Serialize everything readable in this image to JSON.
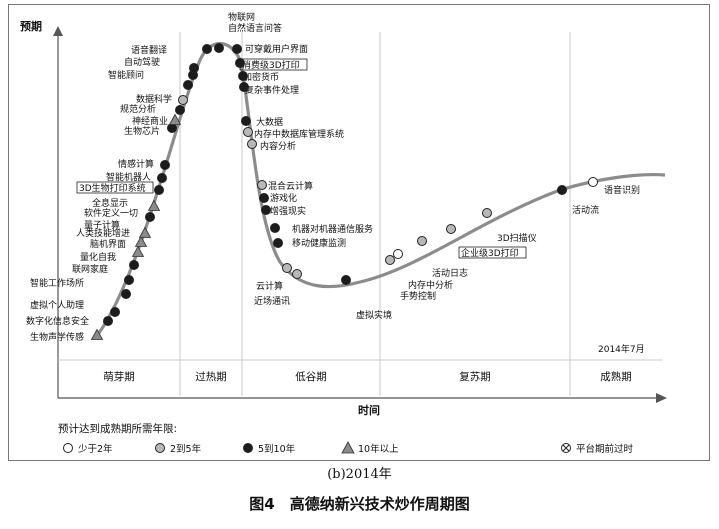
{
  "figure": {
    "y_axis_label": "预期",
    "x_axis_label": "时间",
    "date_note": "2014年7月",
    "phases": [
      "萌芽期",
      "过热期",
      "低谷期",
      "复苏期",
      "成熟期"
    ],
    "legend_title": "预计达到成熟期所需年限:",
    "legend": [
      {
        "key": "lt2",
        "label": "少于2年",
        "fill": "#ffffff"
      },
      {
        "key": "2to5",
        "label": "2到5年",
        "fill": "#b8b8b8"
      },
      {
        "key": "5to10",
        "label": "5到10年",
        "fill": "#1c1c1c"
      },
      {
        "key": "gt10",
        "label": "10年以上",
        "fill": "#8a8a8a"
      },
      {
        "key": "obsolete",
        "label": "平台期前过时",
        "fill": "#ffffff"
      }
    ],
    "technologies": [
      {
        "name": "生物声学传感",
        "stage": "gt10",
        "boxed": false
      },
      {
        "name": "数字化信息安全",
        "stage": "5to10",
        "boxed": false
      },
      {
        "name": "虚拟个人助理",
        "stage": "5to10",
        "boxed": false
      },
      {
        "name": "智能工作场所",
        "stage": "5to10",
        "boxed": false
      },
      {
        "name": "联网家庭",
        "stage": "5to10",
        "boxed": false
      },
      {
        "name": "量化自我",
        "stage": "5to10",
        "boxed": false
      },
      {
        "name": "脑机界面",
        "stage": "gt10",
        "boxed": false
      },
      {
        "name": "人类技能增进",
        "stage": "gt10",
        "boxed": false
      },
      {
        "name": "量子计算",
        "stage": "gt10",
        "boxed": false
      },
      {
        "name": "软件定义一切",
        "stage": "5to10",
        "boxed": false
      },
      {
        "name": "全息显示",
        "stage": "gt10",
        "boxed": false
      },
      {
        "name": "3D生物打印系统",
        "stage": "5to10",
        "boxed": true
      },
      {
        "name": "智能机器人",
        "stage": "5to10",
        "boxed": false
      },
      {
        "name": "情感计算",
        "stage": "5to10",
        "boxed": false
      },
      {
        "name": "生物芯片",
        "stage": "5to10",
        "boxed": false
      },
      {
        "name": "神经商业",
        "stage": "gt10",
        "boxed": false
      },
      {
        "name": "规范分析",
        "stage": "5to10",
        "boxed": false
      },
      {
        "name": "数据科学",
        "stage": "2to5",
        "boxed": false
      },
      {
        "name": "智能顾问",
        "stage": "5to10",
        "boxed": false
      },
      {
        "name": "自动驾驶",
        "stage": "5to10",
        "boxed": false
      },
      {
        "name": "语音翻译",
        "stage": "5to10",
        "boxed": false
      },
      {
        "name": "物联网",
        "stage": "5to10",
        "boxed": false
      },
      {
        "name": "自然语言问答",
        "stage": "5to10",
        "boxed": false
      },
      {
        "name": "可穿戴用户界面",
        "stage": "5to10",
        "boxed": false
      },
      {
        "name": "消费级3D打印",
        "stage": "5to10",
        "boxed": true
      },
      {
        "name": "加密货币",
        "stage": "5to10",
        "boxed": false
      },
      {
        "name": "复杂事件处理",
        "stage": "5to10",
        "boxed": false
      },
      {
        "name": "大数据",
        "stage": "5to10",
        "boxed": false
      },
      {
        "name": "内存中数据库管理系统",
        "stage": "2to5",
        "boxed": false
      },
      {
        "name": "内容分析",
        "stage": "2to5",
        "boxed": false
      },
      {
        "name": "混合云计算",
        "stage": "2to5",
        "boxed": false
      },
      {
        "name": "游戏化",
        "stage": "5to10",
        "boxed": false
      },
      {
        "name": "增强现实",
        "stage": "5to10",
        "boxed": false
      },
      {
        "name": "机器对机器通信服务",
        "stage": "5to10",
        "boxed": false
      },
      {
        "name": "移动健康监测",
        "stage": "5to10",
        "boxed": false
      },
      {
        "name": "云计算",
        "stage": "2to5",
        "boxed": false
      },
      {
        "name": "近场通讯",
        "stage": "2to5",
        "boxed": false
      },
      {
        "name": "虚拟实境",
        "stage": "5to10",
        "boxed": false
      },
      {
        "name": "手势控制",
        "stage": "2to5",
        "boxed": false
      },
      {
        "name": "内存中分析",
        "stage": "lt2",
        "boxed": false
      },
      {
        "name": "活动日志",
        "stage": "2to5",
        "boxed": false
      },
      {
        "name": "企业级3D打印",
        "stage": "2to5",
        "boxed": true
      },
      {
        "name": "3D扫描仪",
        "stage": "2to5",
        "boxed": false
      },
      {
        "name": "活动流",
        "stage": "5to10",
        "boxed": false
      },
      {
        "name": "语音识别",
        "stage": "lt2",
        "boxed": false
      }
    ]
  },
  "captions": {
    "sub": "(b)2014年",
    "title": "图4　高德纳新兴技术炒作周期图"
  }
}
